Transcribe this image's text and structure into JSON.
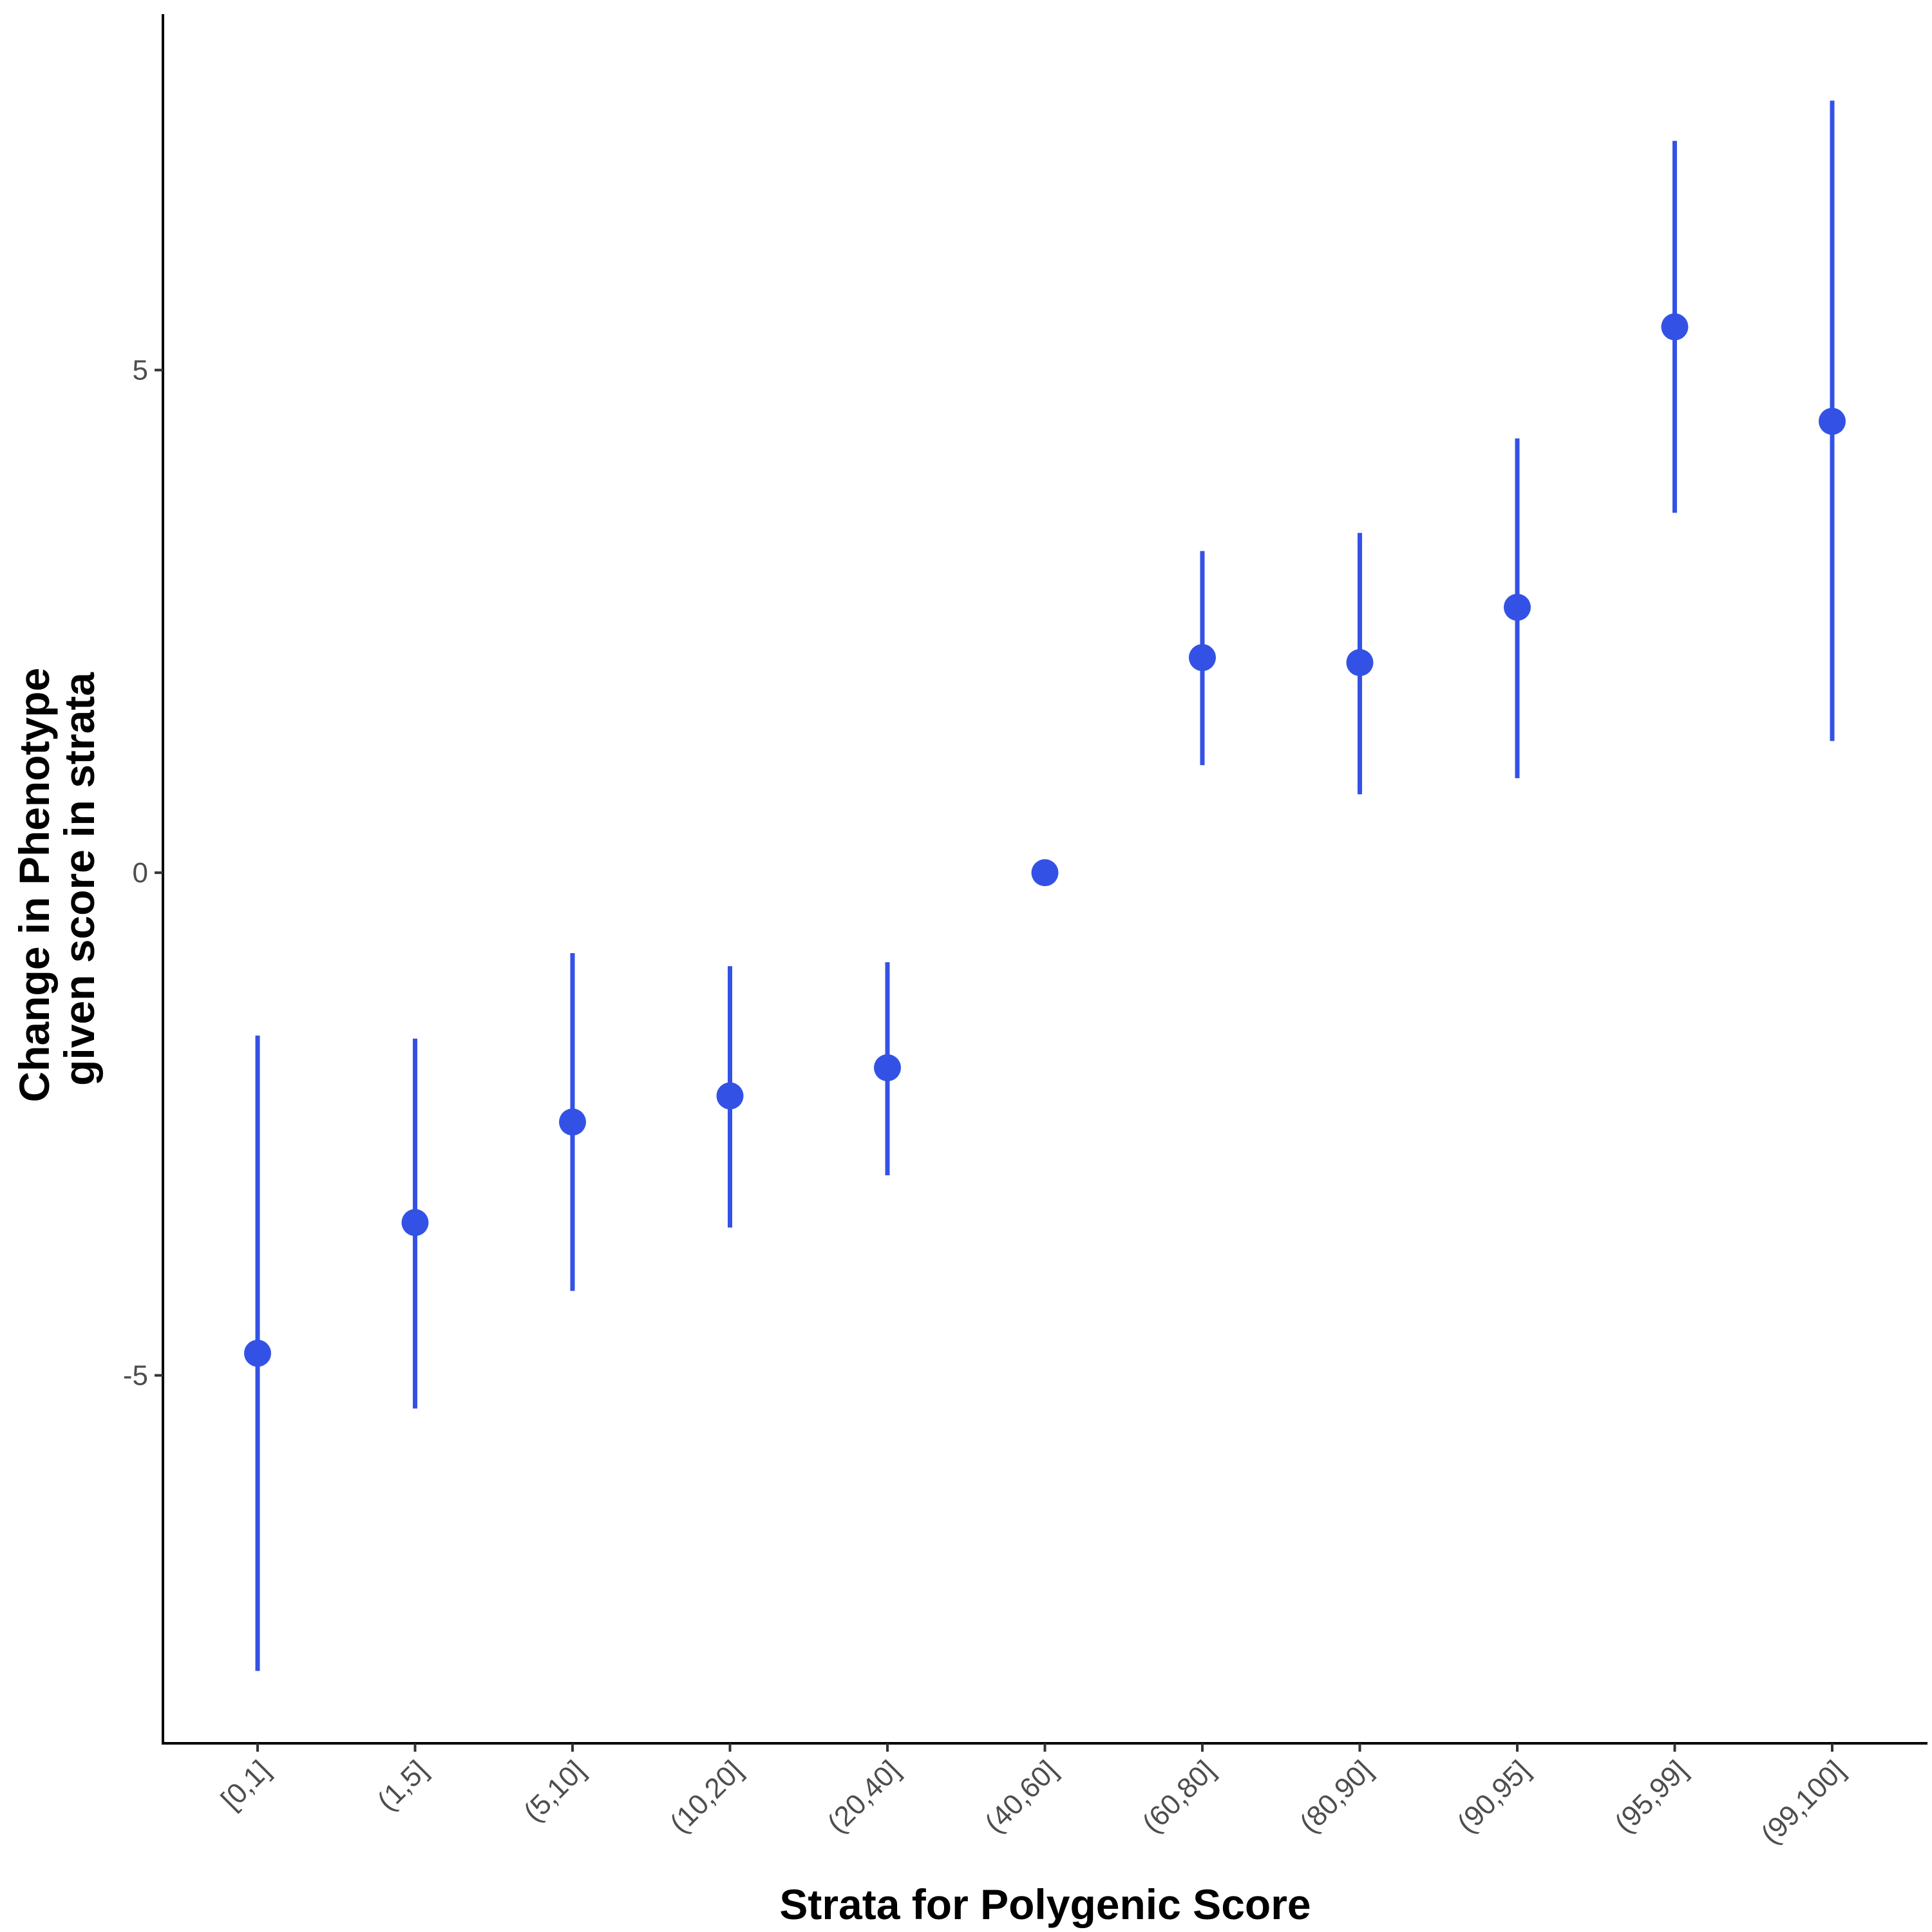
{
  "chart_data": {
    "type": "scatter",
    "title": "",
    "xlabel": "Strata for Polygenic Score",
    "ylabel_lines": [
      "Change in Phenotype",
      "given score in strata"
    ],
    "categories": [
      "[0,1]",
      "(1,5]",
      "(5,10]",
      "(10,20]",
      "(20,40]",
      "(40,60]",
      "(60,80]",
      "(80,90]",
      "(90,95]",
      "(95,99]",
      "(99,100]"
    ],
    "series": [
      {
        "values": [
          -4.78,
          -3.48,
          -2.48,
          -2.22,
          -1.94,
          0.0,
          2.14,
          2.09,
          2.64,
          5.43,
          4.49
        ],
        "lower": [
          -7.94,
          -5.33,
          -4.16,
          -3.53,
          -3.01,
          null,
          1.07,
          0.78,
          0.94,
          3.58,
          1.31
        ],
        "upper": [
          -1.62,
          -1.65,
          -0.8,
          -0.93,
          -0.89,
          null,
          3.2,
          3.38,
          4.32,
          7.28,
          7.68
        ]
      }
    ],
    "yticks": [
      -5,
      0,
      5
    ],
    "ytick_labels": [
      "-5",
      "0",
      "5"
    ],
    "ylim": [
      -8.66,
      8.54
    ],
    "grid": false,
    "legend": "none",
    "color": "#3352e5"
  }
}
